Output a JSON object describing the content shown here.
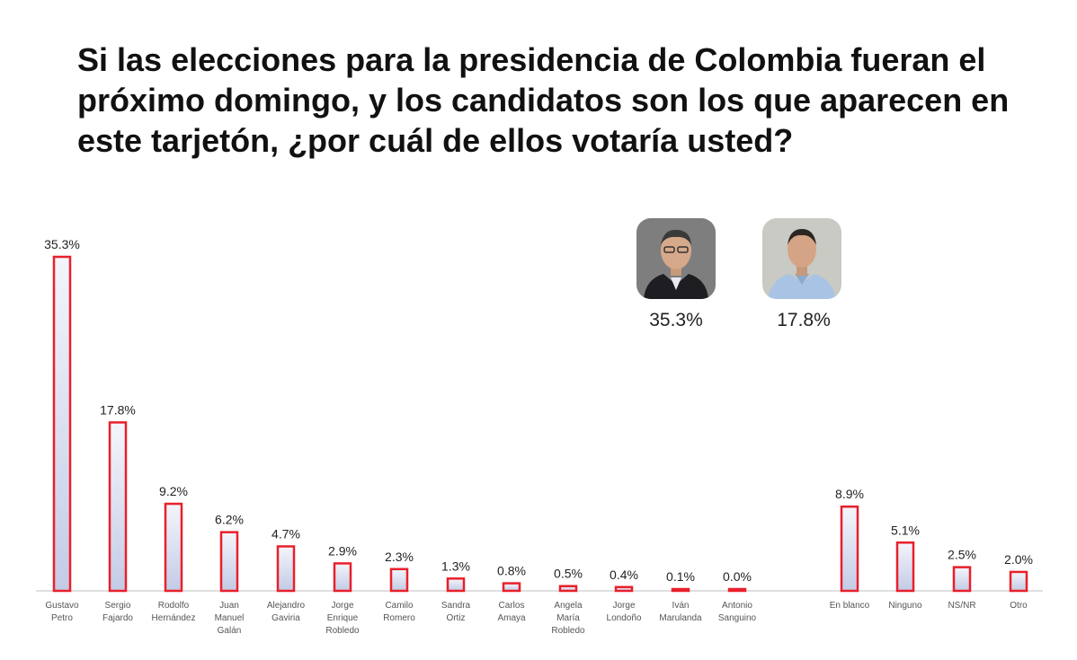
{
  "title": "Si las elecciones para la presidencia de Colombia fueran el próximo domingo, y los candidatos son los que aparecen en este tarjetón, ¿por cuál de ellos votaría usted?",
  "highlights": [
    {
      "value_label": "35.3%",
      "icon": "candidate-photo-icon"
    },
    {
      "value_label": "17.8%",
      "icon": "candidate-photo-icon"
    }
  ],
  "colors": {
    "bar_border": "#e8202a",
    "bar_fill_top": "#f4f5fb",
    "bar_fill_bottom": "#c3cbe6",
    "baseline": "#bfbfbf"
  },
  "chart_data": {
    "type": "bar",
    "title": "Si las elecciones para la presidencia de Colombia fueran el próximo domingo, y los candidatos son los que aparecen en este tarjetón, ¿por cuál de ellos votaría usted?",
    "xlabel": "",
    "ylabel": "",
    "ylim": [
      0,
      35.3
    ],
    "grid": false,
    "categories": [
      [
        "Gustavo",
        "Petro"
      ],
      [
        "Sergio",
        "Fajardo"
      ],
      [
        "Rodolfo",
        "Hernández"
      ],
      [
        "Juan",
        "Manuel",
        "Galán"
      ],
      [
        "Alejandro",
        "Gaviria"
      ],
      [
        "Jorge",
        "Enrique",
        "Robledo"
      ],
      [
        "Camilo",
        "Romero"
      ],
      [
        "Sandra",
        "Ortiz"
      ],
      [
        "Carlos",
        "Amaya"
      ],
      [
        "Angela",
        "María",
        "Robledo"
      ],
      [
        "Jorge",
        "Londoño"
      ],
      [
        "Iván",
        "Marulanda"
      ],
      [
        "Antonio",
        "Sanguino"
      ],
      [
        "En blanco"
      ],
      [
        "Ninguno"
      ],
      [
        "NS/NR"
      ],
      [
        "Otro"
      ]
    ],
    "values": [
      35.3,
      17.8,
      9.2,
      6.2,
      4.7,
      2.9,
      2.3,
      1.3,
      0.8,
      0.5,
      0.4,
      0.1,
      0.0,
      8.9,
      5.1,
      2.5,
      2.0
    ],
    "value_labels": [
      "35.3%",
      "17.8%",
      "9.2%",
      "6.2%",
      "4.7%",
      "2.9%",
      "2.3%",
      "1.3%",
      "0.8%",
      "0.5%",
      "0.4%",
      "0.1%",
      "0.0%",
      "8.9%",
      "5.1%",
      "2.5%",
      "2.0%"
    ]
  }
}
